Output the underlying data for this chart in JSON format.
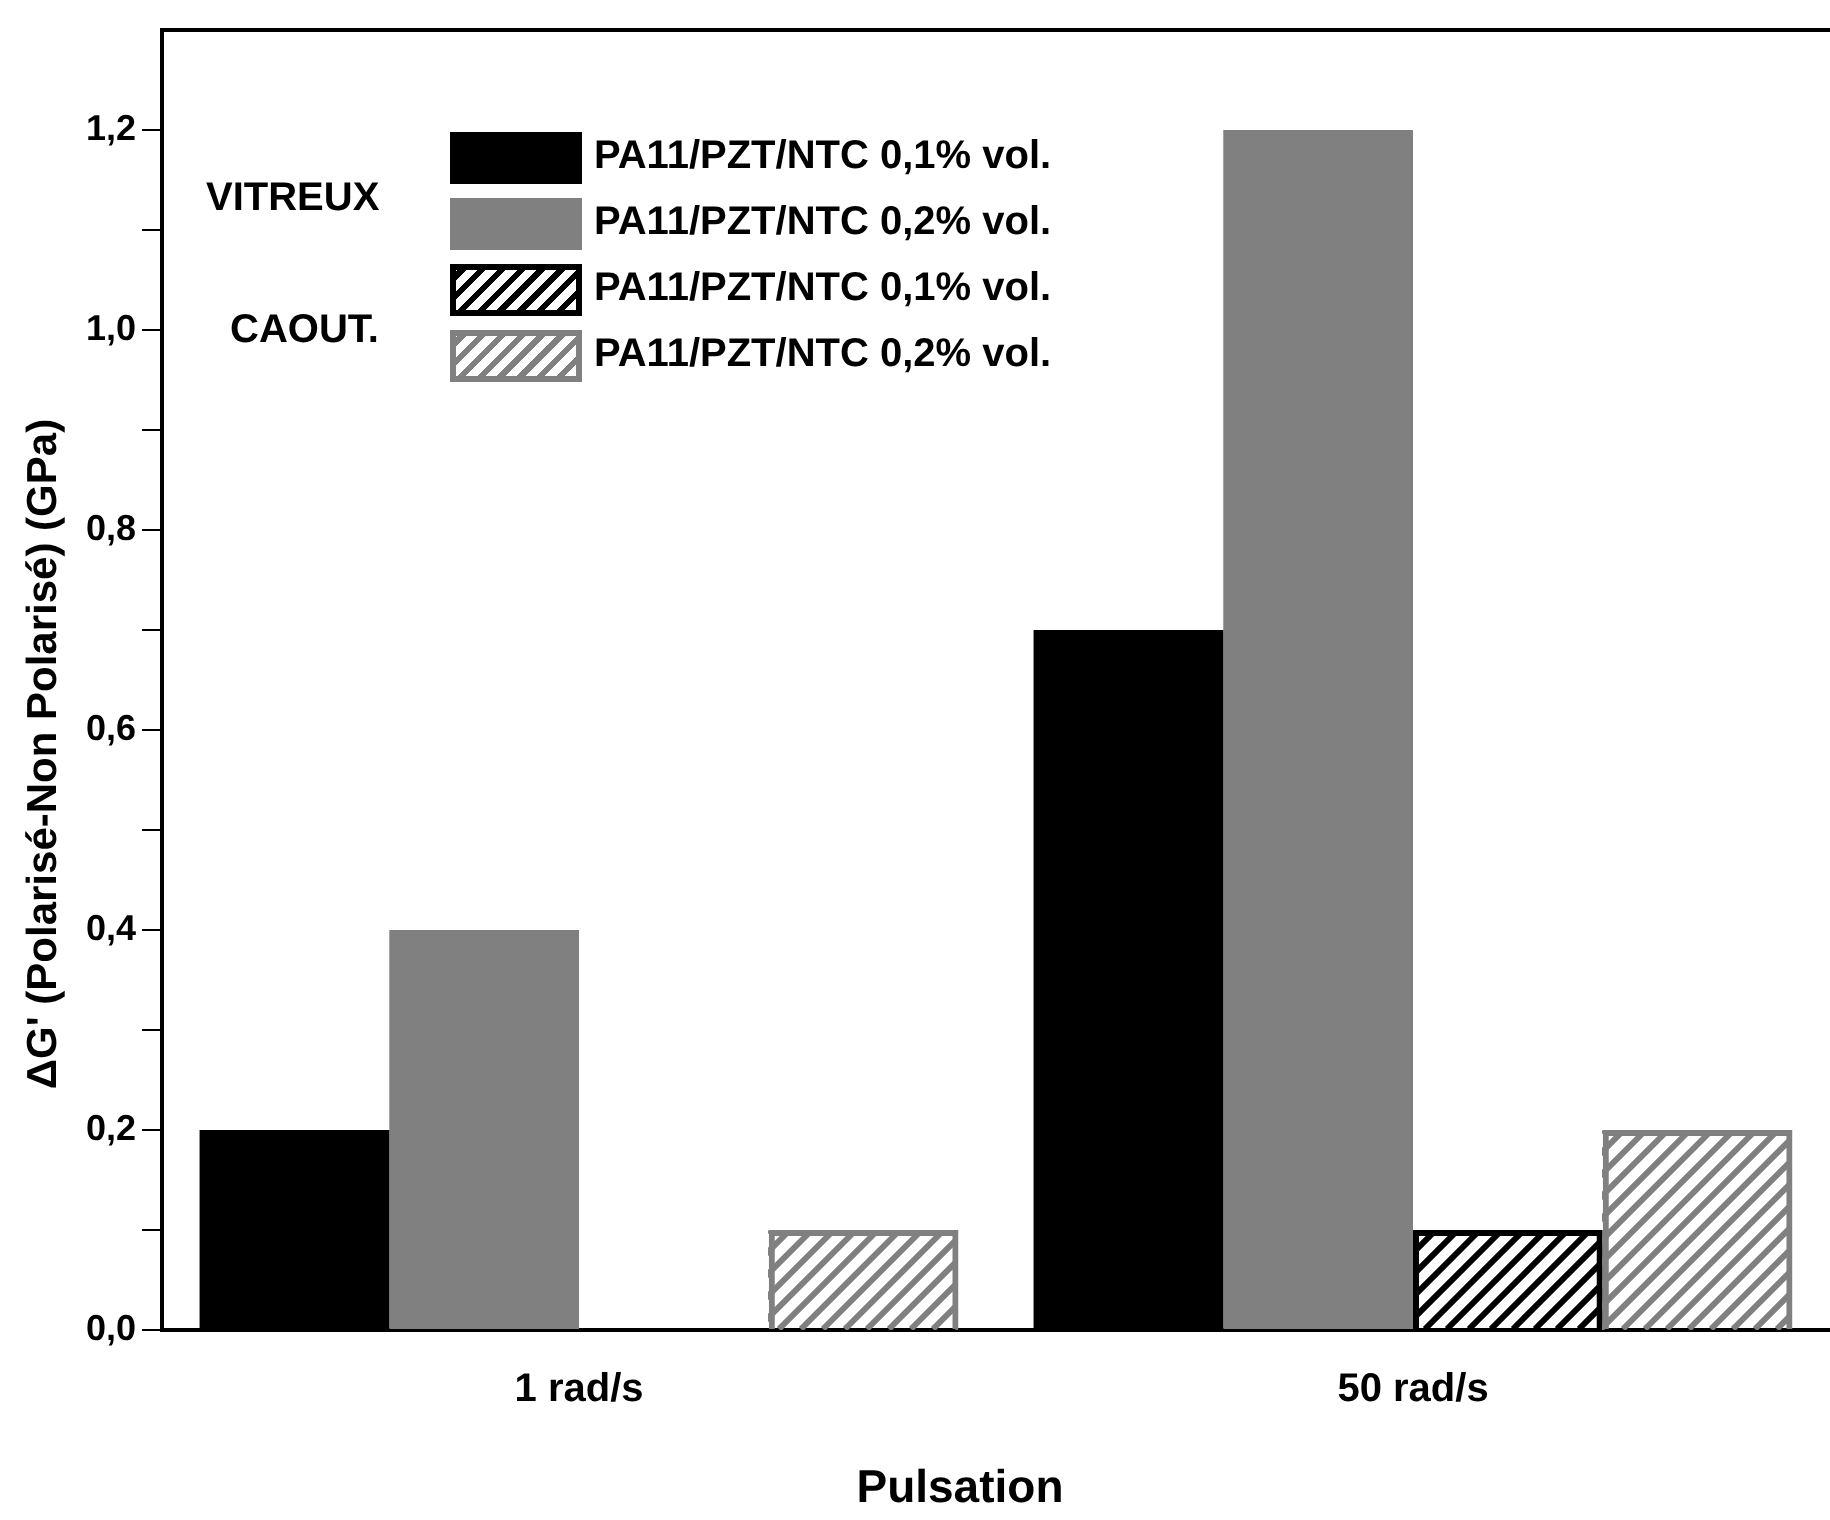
{
  "chart_data": {
    "type": "bar",
    "xlabel": "Pulsation",
    "ylabel": "ΔG' (Polarisé-Non Polarisé) (GPa)",
    "categories": [
      "1 rad/s",
      "50 rad/s"
    ],
    "series": [
      {
        "name": "PA11/PZT/NTC 0,1% vol.",
        "color": "#000000",
        "values": [
          0.2,
          0.7
        ]
      },
      {
        "name": "PA11/PZT/NTC 0,2% vol.",
        "color": "#808080",
        "values": [
          0.4,
          1.2
        ]
      },
      {
        "name": "PA11/PZT/NTC 0,1% vol.",
        "color": "#000000",
        "values": [
          null,
          0.1
        ]
      },
      {
        "name": "PA11/PZT/NTC 0,2% vol.",
        "color": "#808080",
        "values": [
          0.1,
          0.2
        ]
      }
    ],
    "ylim": [
      0,
      1.3
    ],
    "yticks": [
      {
        "value": 0,
        "label": "0,0"
      },
      {
        "value": 0.1,
        "label": null
      },
      {
        "value": 0.2,
        "label": "0,2"
      },
      {
        "value": 0.3,
        "label": null
      },
      {
        "value": 0.4,
        "label": "0,4"
      },
      {
        "value": 0.5,
        "label": null
      },
      {
        "value": 0.6,
        "label": "0,6"
      },
      {
        "value": 0.7,
        "label": null
      },
      {
        "value": 0.8,
        "label": "0,8"
      },
      {
        "value": 0.9,
        "label": null
      },
      {
        "value": 1.0,
        "label": "1,0"
      },
      {
        "value": 1.1,
        "label": null
      },
      {
        "value": 1.2,
        "label": "1,2"
      }
    ],
    "annotations": [
      "VITREUX",
      "CAOUT."
    ],
    "legend": "top left",
    "grid": false
  }
}
